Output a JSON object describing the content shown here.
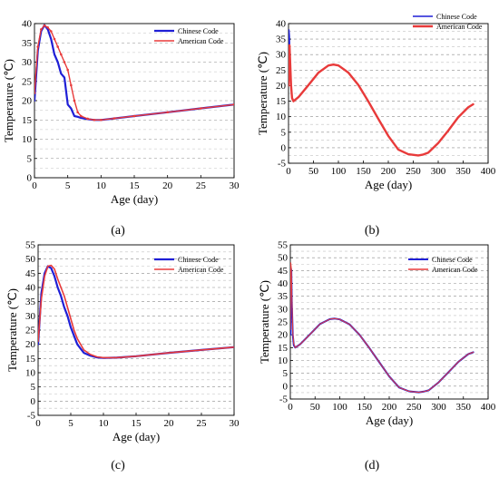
{
  "chart_data": [
    {
      "type": "line",
      "caption": "(a)",
      "xlabel": "Age  (day)",
      "ylabel": "Temperature  (℃)",
      "xlim": [
        0,
        30
      ],
      "ylim": [
        0,
        40
      ],
      "xticks": [
        0,
        5,
        10,
        15,
        20,
        25,
        30
      ],
      "yticks": [
        0,
        5,
        10,
        15,
        20,
        25,
        30,
        35,
        40
      ],
      "grid": "dashed horizontal",
      "legend": "top-right",
      "series": [
        {
          "name": "Chinese Code",
          "color": "#1f1fd6",
          "width": 2.2,
          "marker": "none",
          "x": [
            0,
            0.5,
            1,
            1.5,
            2,
            2.5,
            3,
            3.5,
            4,
            4.5,
            5,
            5.5,
            6,
            6.5,
            7,
            8,
            9,
            10,
            12,
            15,
            20,
            25,
            30
          ],
          "y": [
            20,
            33,
            38,
            39.6,
            38.5,
            36,
            32,
            30,
            27,
            26,
            19,
            18,
            16,
            15.8,
            15.5,
            15.2,
            15,
            15,
            15.4,
            16,
            17,
            18,
            19
          ]
        },
        {
          "name": "American Code",
          "color": "#e83a3a",
          "width": 1.4,
          "marker": "dot",
          "x": [
            0,
            0.5,
            1,
            1.5,
            2,
            2.5,
            3,
            3.5,
            4,
            4.5,
            5,
            5.5,
            6,
            6.5,
            7,
            8,
            9,
            10,
            12,
            15,
            20,
            25,
            30
          ],
          "y": [
            22,
            34,
            38.5,
            39.5,
            39,
            38,
            36,
            34,
            32,
            30,
            28,
            24,
            20,
            17,
            16,
            15.3,
            15,
            15,
            15.4,
            16,
            17,
            18,
            19
          ]
        }
      ]
    },
    {
      "type": "line",
      "caption": "(b)",
      "xlabel": "Age  (day)",
      "ylabel": "Temperature  (℃)",
      "xlim": [
        0,
        400
      ],
      "ylim": [
        -5,
        40
      ],
      "xticks": [
        0,
        50,
        100,
        150,
        200,
        250,
        300,
        350,
        400
      ],
      "yticks": [
        -5,
        0,
        5,
        10,
        15,
        20,
        25,
        30,
        35,
        40
      ],
      "grid": "dashed horizontal",
      "legend": "top-right",
      "series": [
        {
          "name": "Chinese Code",
          "color": "#1f1fd6",
          "width": 1.2,
          "x": [
            0,
            1,
            2,
            3,
            5,
            7,
            10,
            20,
            40,
            60,
            80,
            90,
            100,
            120,
            140,
            160,
            180,
            200,
            220,
            240,
            260,
            270,
            280,
            300,
            320,
            340,
            360,
            370
          ],
          "y": [
            22,
            38,
            36,
            30,
            20,
            16,
            15,
            16.3,
            20.2,
            24.2,
            26.5,
            26.8,
            26.5,
            24.2,
            20.2,
            14.9,
            9.3,
            3.8,
            -0.6,
            -2.1,
            -2.5,
            -2.2,
            -1.6,
            1.5,
            5.5,
            9.8,
            13.0,
            14.0
          ]
        },
        {
          "name": "American Code",
          "color": "#e83a3a",
          "width": 2.4,
          "x": [
            0,
            2,
            5,
            7,
            10,
            20,
            40,
            60,
            80,
            90,
            100,
            120,
            140,
            160,
            180,
            200,
            220,
            240,
            260,
            270,
            280,
            300,
            320,
            340,
            360,
            370
          ],
          "y": [
            20,
            33,
            20,
            16,
            15,
            16.3,
            20.2,
            24.2,
            26.5,
            26.8,
            26.5,
            24.2,
            20.2,
            14.9,
            9.3,
            3.8,
            -0.6,
            -2.1,
            -2.5,
            -2.2,
            -1.6,
            1.5,
            5.5,
            9.8,
            13.0,
            14.0
          ]
        }
      ]
    },
    {
      "type": "line",
      "caption": "(c)",
      "xlabel": "Age  (day)",
      "ylabel": "Temperature  (℃)",
      "xlim": [
        0,
        30
      ],
      "ylim": [
        -5,
        55
      ],
      "xticks": [
        0,
        5,
        10,
        15,
        20,
        25,
        30
      ],
      "yticks": [
        -5,
        0,
        5,
        10,
        15,
        20,
        25,
        30,
        35,
        40,
        45,
        50,
        55
      ],
      "grid": "dashed horizontal",
      "legend": "top-right",
      "series": [
        {
          "name": "Chinese Code",
          "color": "#1f1fd6",
          "width": 2.2,
          "x": [
            0,
            0.5,
            1,
            1.5,
            2,
            2.5,
            3,
            3.5,
            4,
            4.5,
            5,
            5.5,
            6,
            7,
            8,
            9,
            10,
            12,
            15,
            20,
            25,
            30
          ],
          "y": [
            20,
            38,
            45,
            47.5,
            46.8,
            44,
            40,
            37,
            33,
            30,
            26,
            23,
            20,
            17,
            16,
            15.4,
            15.2,
            15.3,
            15.8,
            17,
            18,
            19
          ]
        },
        {
          "name": "American Code",
          "color": "#e83a3a",
          "width": 1.6,
          "x": [
            0,
            0.5,
            1,
            1.5,
            2,
            2.5,
            3,
            3.5,
            4,
            4.5,
            5,
            5.5,
            6,
            7,
            8,
            9,
            10,
            12,
            15,
            20,
            25,
            30
          ],
          "y": [
            21,
            36,
            44,
            47.5,
            47.8,
            46.5,
            43,
            40,
            37,
            33,
            29,
            25,
            22,
            18,
            16.4,
            15.6,
            15.3,
            15.3,
            15.8,
            17,
            18,
            19
          ]
        }
      ]
    },
    {
      "type": "line",
      "caption": "(d)",
      "xlabel": "Age  (day)",
      "ylabel": "Temperature  (℃)",
      "xlim": [
        0,
        400
      ],
      "ylim": [
        -5,
        55
      ],
      "xticks": [
        0,
        50,
        100,
        150,
        200,
        250,
        300,
        350,
        400
      ],
      "yticks": [
        -5,
        0,
        5,
        10,
        15,
        20,
        25,
        30,
        35,
        40,
        45,
        50,
        55
      ],
      "grid": "dashed horizontal",
      "legend": "top-right",
      "series": [
        {
          "name": "Chinese Code",
          "color": "#1f1fd6",
          "width": 2.0,
          "x": [
            0,
            1,
            2,
            3,
            5,
            7,
            10,
            20,
            40,
            60,
            80,
            90,
            100,
            120,
            140,
            160,
            180,
            200,
            220,
            240,
            260,
            270,
            280,
            300,
            320,
            340,
            360,
            370
          ],
          "y": [
            20,
            46,
            45,
            33,
            20,
            16,
            15,
            16.3,
            20.2,
            24.2,
            26.1,
            26.3,
            26.0,
            24.0,
            20.0,
            14.8,
            9.3,
            3.8,
            -0.5,
            -2.0,
            -2.4,
            -2.1,
            -1.6,
            1.5,
            5.5,
            9.5,
            12.5,
            13.2
          ]
        },
        {
          "name": "American Code",
          "color": "#e83a3a",
          "width": 1.0,
          "x": [
            0,
            1,
            2,
            3,
            5,
            7,
            10,
            20,
            40,
            60,
            80,
            90,
            100,
            120,
            140,
            160,
            180,
            200,
            220,
            240,
            260,
            270,
            280,
            300,
            320,
            340,
            360,
            370
          ],
          "y": [
            22,
            48,
            46,
            36,
            21,
            16.5,
            15,
            16.3,
            20.2,
            24.2,
            26.1,
            26.3,
            26.0,
            24.0,
            20.0,
            14.8,
            9.3,
            3.8,
            -0.5,
            -2.0,
            -2.4,
            -2.1,
            -1.6,
            1.5,
            5.5,
            9.5,
            12.5,
            13.2
          ]
        }
      ]
    }
  ]
}
